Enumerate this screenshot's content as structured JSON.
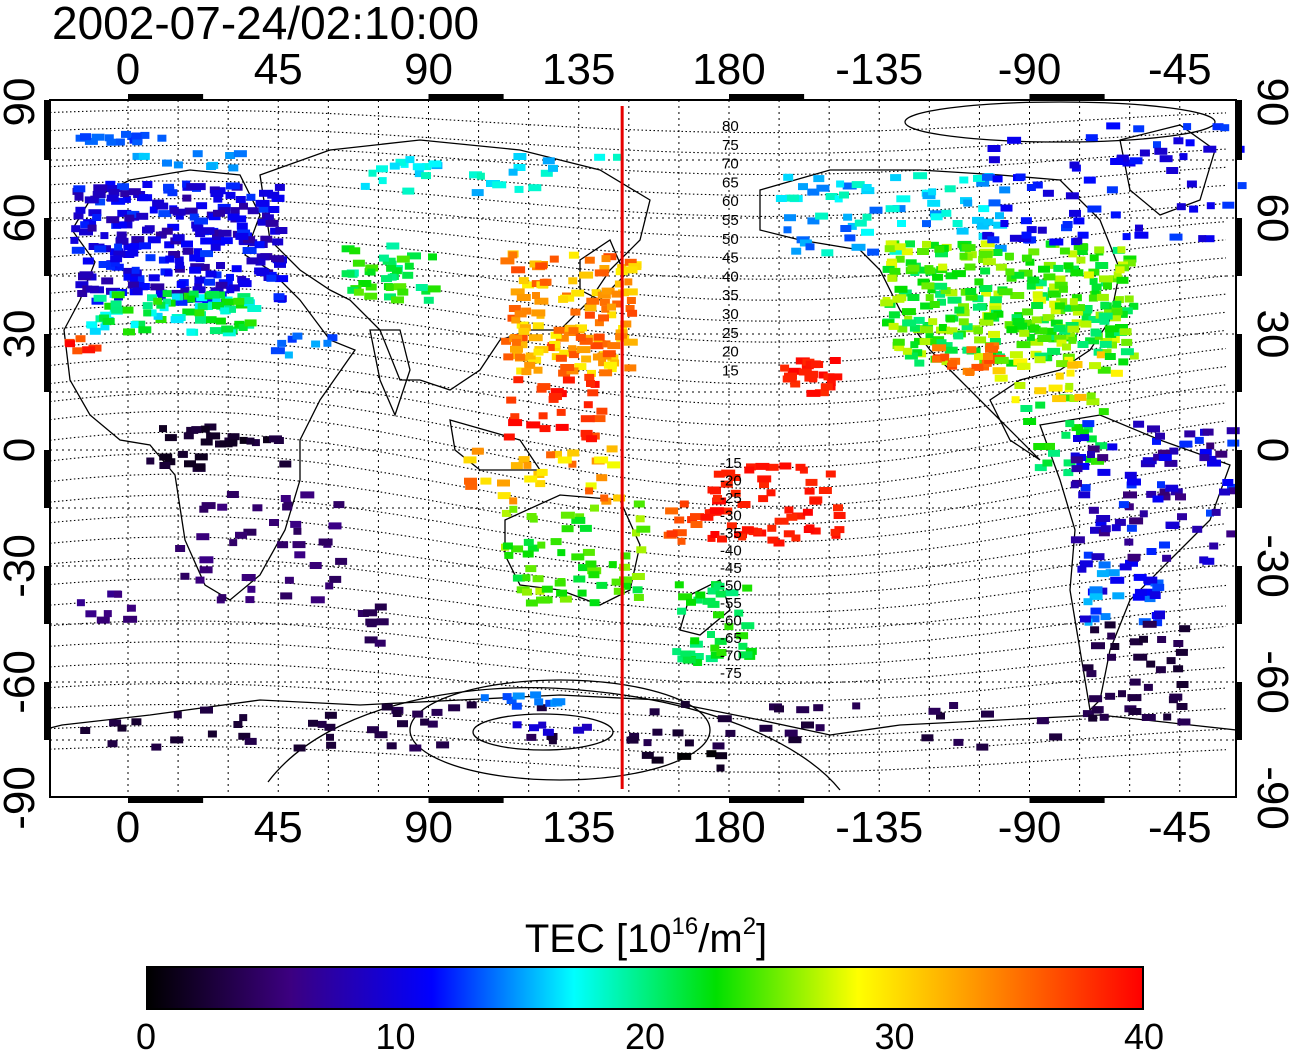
{
  "title": "2002-07-24/02:10:00",
  "map": {
    "lon_ticks_top": [
      "0",
      "45",
      "90",
      "135",
      "180",
      "-135",
      "-90",
      "-45"
    ],
    "lon_ticks_bottom": [
      "0",
      "45",
      "90",
      "135",
      "180",
      "-135",
      "-90",
      "-45"
    ],
    "lat_ticks_left": [
      "90",
      "60",
      "30",
      "0",
      "-30",
      "-60",
      "-90"
    ],
    "lat_ticks_right": [
      "90",
      "60",
      "30",
      "0",
      "-30",
      "-60",
      "-90"
    ],
    "meridian_marker_lon": 148,
    "meridian_marker_color": "#e60000",
    "contour_labels_north": [
      "80",
      "75",
      "70",
      "65",
      "60",
      "55",
      "50",
      "45",
      "40",
      "35",
      "30",
      "25",
      "20",
      "15"
    ],
    "contour_labels_south": [
      "-15",
      "-20",
      "-25",
      "-30",
      "-35",
      "-40",
      "-45",
      "-50",
      "-55",
      "-60",
      "-65",
      "-70",
      "-75"
    ]
  },
  "colorbar": {
    "title_prefix": "TEC  [10",
    "title_exp1": "16",
    "title_mid": "/m",
    "title_exp2": "2",
    "title_suffix": "]",
    "ticks": [
      "0",
      "10",
      "20",
      "30",
      "40"
    ],
    "min": 0,
    "max": 40,
    "colors": [
      "#000000",
      "#3c0080",
      "#0000ff",
      "#00ffff",
      "#00e000",
      "#ffff00",
      "#ff8000",
      "#ff0000"
    ]
  }
}
